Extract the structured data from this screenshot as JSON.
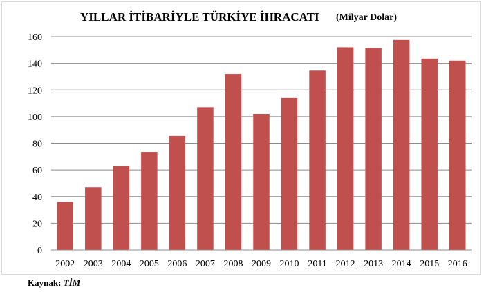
{
  "chart_data": {
    "type": "bar",
    "title": "YILLAR İTİBARİYLE TÜRKİYE İHRACATI",
    "subtitle": "(Milyar Dolar)",
    "categories": [
      "2002",
      "2003",
      "2004",
      "2005",
      "2006",
      "2007",
      "2008",
      "2009",
      "2010",
      "2011",
      "2012",
      "2013",
      "2014",
      "2015",
      "2016"
    ],
    "values": [
      36,
      47,
      63,
      73.5,
      85.5,
      107,
      132,
      102,
      114,
      134.5,
      152,
      151.5,
      157.5,
      143.5,
      142
    ],
    "yticks": [
      "0",
      "20",
      "40",
      "60",
      "80",
      "100",
      "120",
      "140",
      "160"
    ],
    "ylim": [
      0,
      160
    ],
    "grid": true,
    "bar_color": "#c0504d",
    "legend": "none"
  },
  "source": {
    "label": "Kaynak:",
    "value": "TİM"
  }
}
